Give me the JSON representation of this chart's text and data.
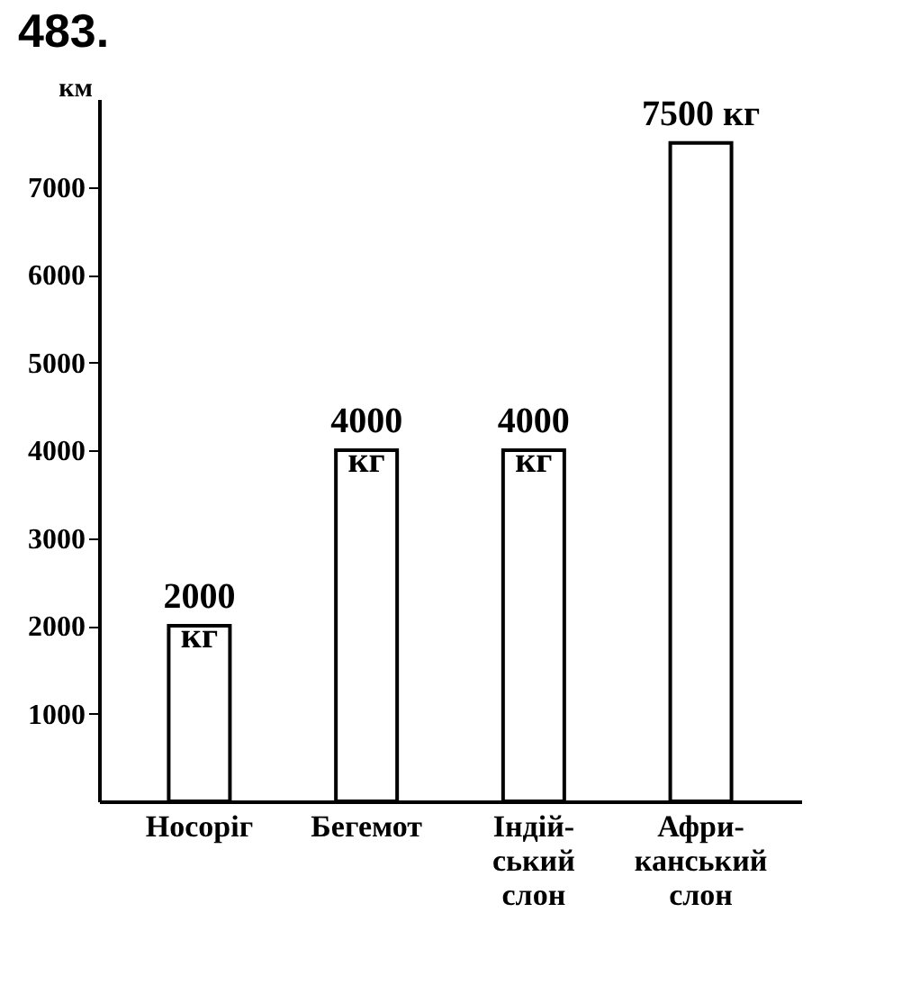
{
  "chart_data": {
    "type": "bar",
    "title": "483.",
    "ylabel": "км",
    "categories": [
      "Носоріг",
      "Бегемот",
      "Індій-\nський\nслон",
      "Афри-\nканський\nслон"
    ],
    "values": [
      2000,
      4000,
      4000,
      7500
    ],
    "value_labels": [
      "2000\nкг",
      "4000\nкг",
      "4000\nкг",
      "7500 кг"
    ],
    "color": "#ffffff",
    "ylim": [
      0,
      8000
    ],
    "yticks": [
      1000,
      2000,
      3000,
      4000,
      5000,
      6000,
      7000
    ],
    "grid": false
  }
}
